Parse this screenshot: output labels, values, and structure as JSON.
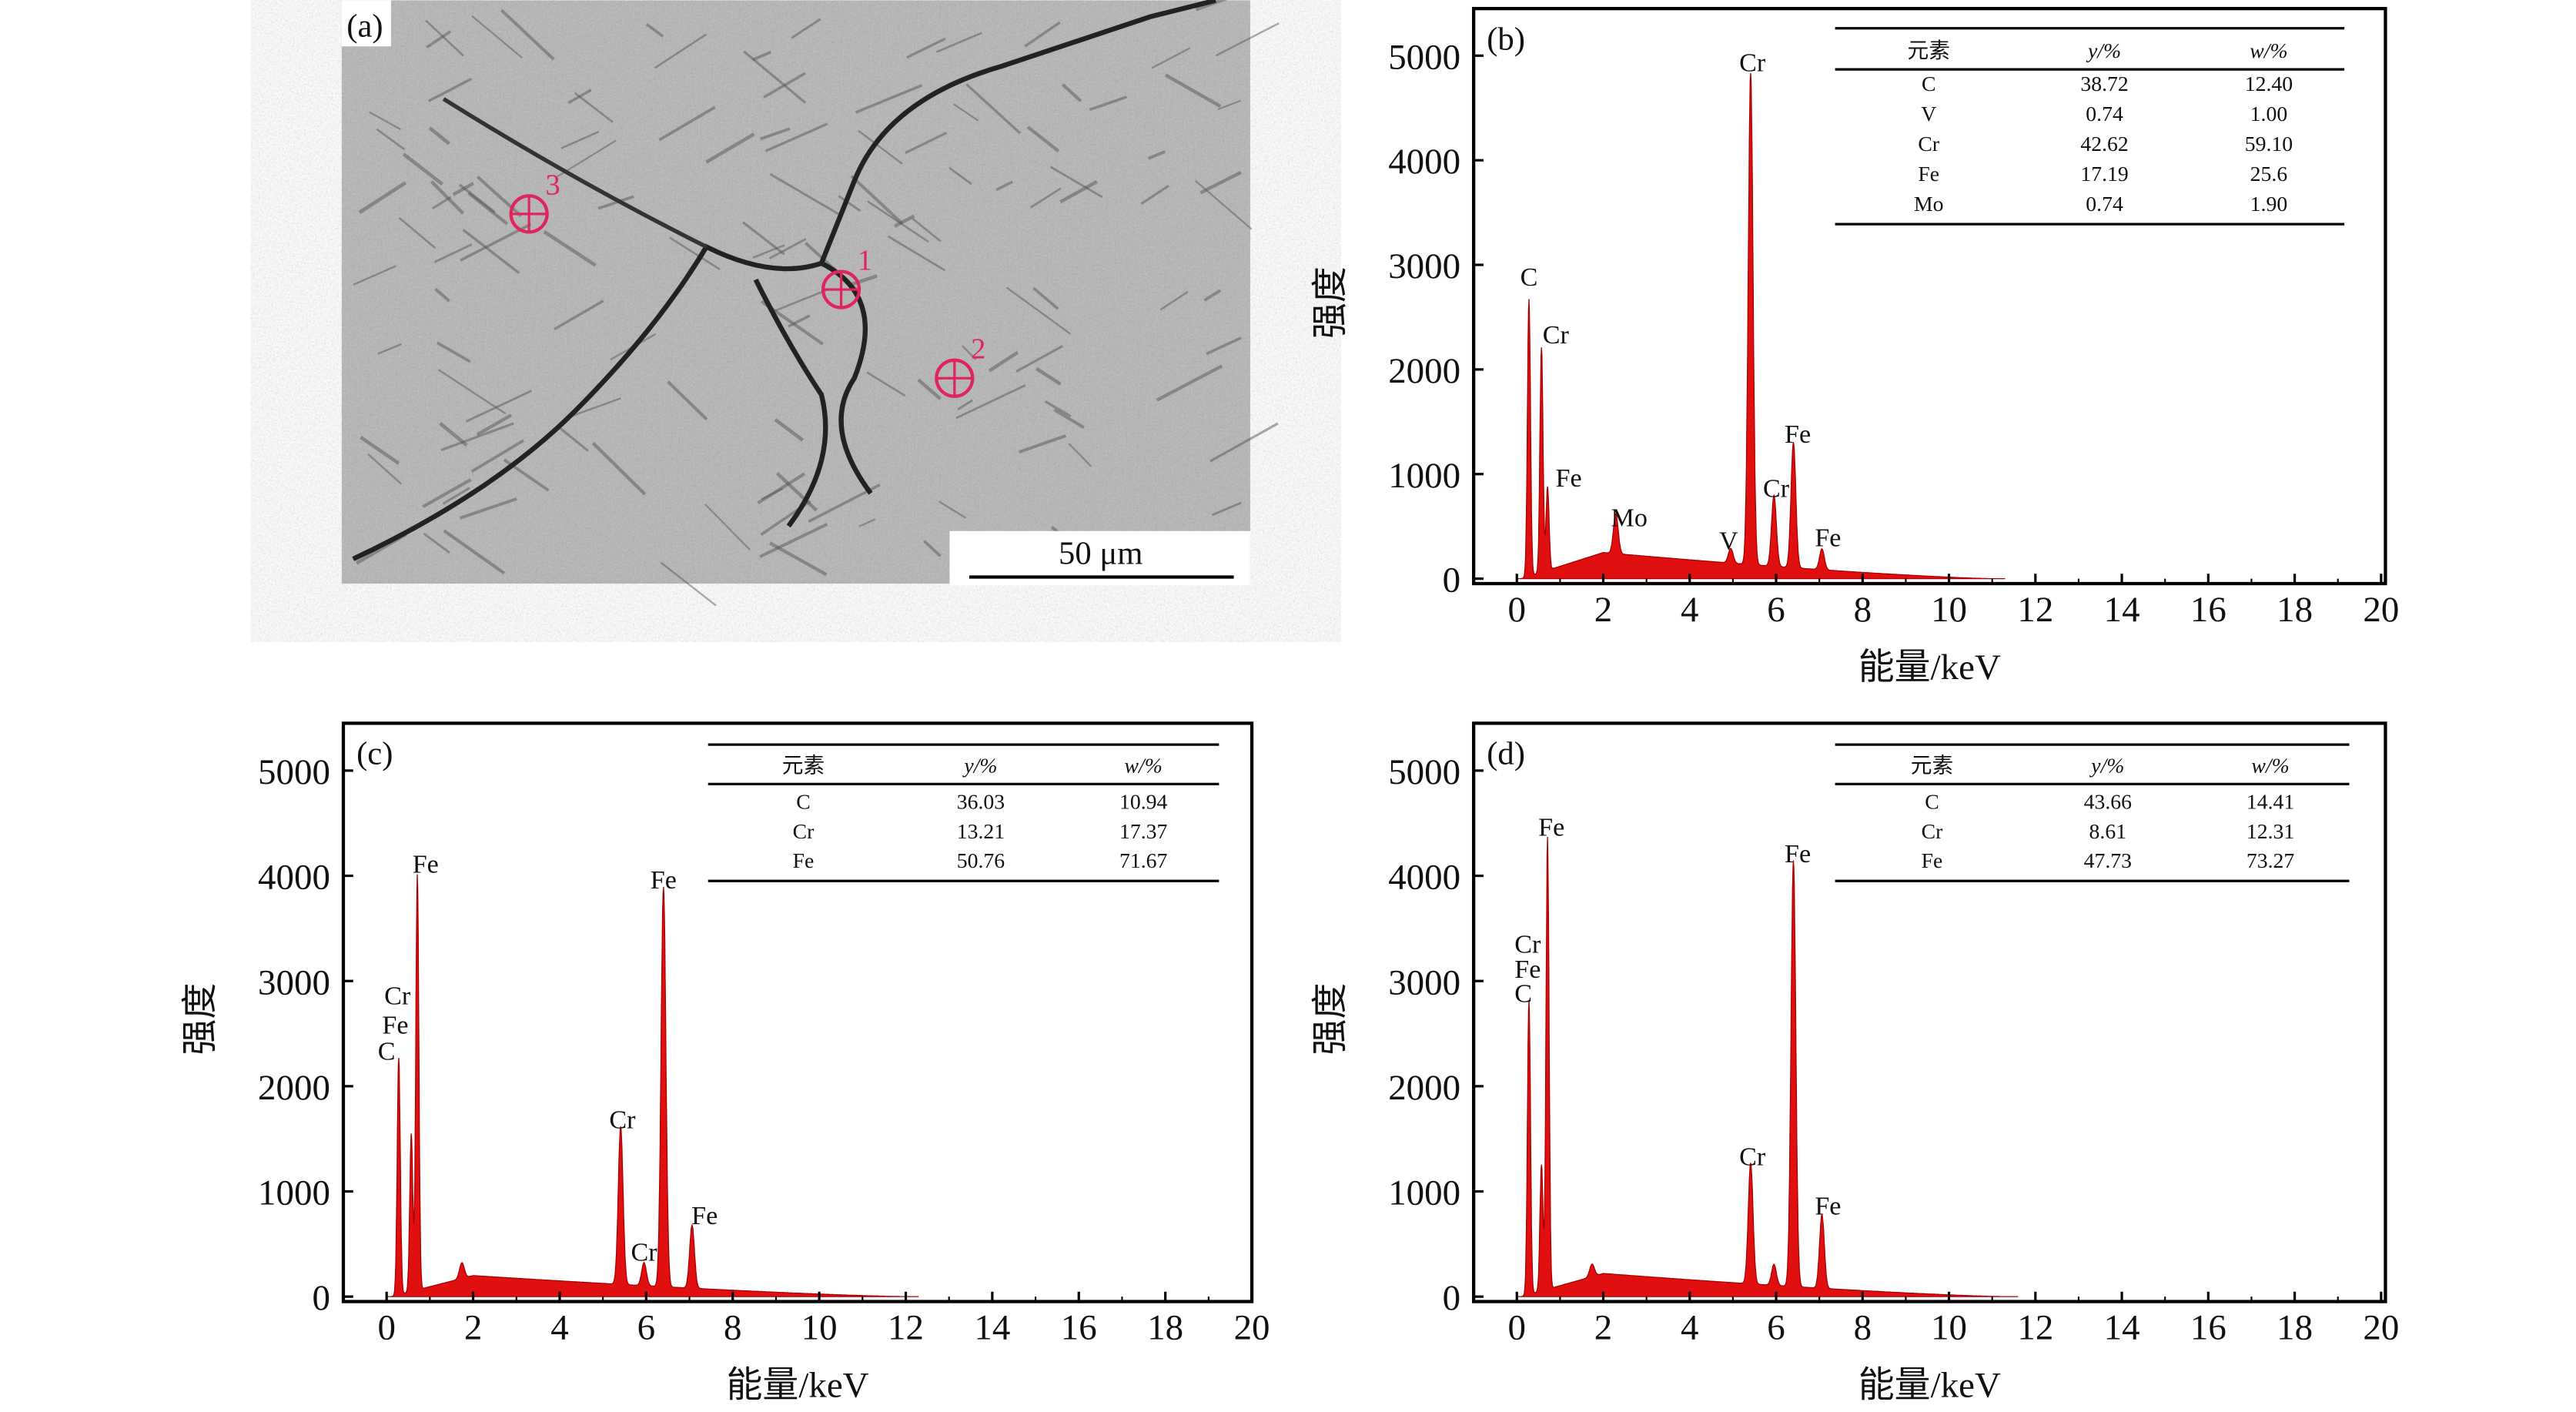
{
  "sem_image": {
    "panel_label": "(a)",
    "scale_bar": "50 μm",
    "markers": [
      {
        "label": "1"
      },
      {
        "label": "2"
      },
      {
        "label": "3"
      }
    ],
    "marker_color": "#e0245e"
  },
  "chart_data": [
    {
      "type": "area",
      "panel_label": "(b)",
      "xlabel": "能量/keV",
      "ylabel": "强度",
      "xlim": [
        -1,
        20.1
      ],
      "ylim": [
        0,
        5450
      ],
      "xticks": [
        0,
        2,
        4,
        6,
        8,
        10,
        12,
        14,
        16,
        18,
        20
      ],
      "yticks": [
        0,
        1000,
        2000,
        3000,
        4000,
        5000
      ],
      "color": "#e01010",
      "background": {
        "peak_keV": 2,
        "peak": 250,
        "end_keV": 11
      },
      "peaks": [
        {
          "keV": 0.28,
          "intensity": 2650
        },
        {
          "keV": 0.57,
          "intensity": 2150
        },
        {
          "keV": 0.71,
          "intensity": 800
        },
        {
          "keV": 2.29,
          "intensity": 380
        },
        {
          "keV": 4.95,
          "intensity": 140
        },
        {
          "keV": 5.41,
          "intensity": 4700
        },
        {
          "keV": 5.95,
          "intensity": 680
        },
        {
          "keV": 6.4,
          "intensity": 1200
        },
        {
          "keV": 7.06,
          "intensity": 200
        }
      ],
      "annotations": [
        {
          "text": "C",
          "keV": 0.28,
          "intensity": 2800
        },
        {
          "text": "Cr",
          "keV": 0.9,
          "intensity": 2250
        },
        {
          "text": "Fe",
          "keV": 1.2,
          "intensity": 880
        },
        {
          "text": "Mo",
          "keV": 2.6,
          "intensity": 500
        },
        {
          "text": "V",
          "keV": 4.9,
          "intensity": 280
        },
        {
          "text": "Cr",
          "keV": 5.45,
          "intensity": 4850
        },
        {
          "text": "Cr",
          "keV": 6.0,
          "intensity": 780
        },
        {
          "text": "Fe",
          "keV": 6.5,
          "intensity": 1300
        },
        {
          "text": "Fe",
          "keV": 7.2,
          "intensity": 310
        }
      ],
      "table": {
        "headers": [
          "元素",
          "y/%",
          "w/%"
        ],
        "rows": [
          [
            "C",
            "38.72",
            "12.40"
          ],
          [
            "V",
            "0.74",
            "1.00"
          ],
          [
            "Cr",
            "42.62",
            "59.10"
          ],
          [
            "Fe",
            "17.19",
            "25.6"
          ],
          [
            "Mo",
            "0.74",
            "1.90"
          ]
        ]
      }
    },
    {
      "type": "area",
      "panel_label": "(c)",
      "xlabel": "能量/keV",
      "ylabel": "强度",
      "xlim": [
        -1,
        20
      ],
      "ylim": [
        0,
        5450
      ],
      "xticks": [
        0,
        2,
        4,
        6,
        8,
        10,
        12,
        14,
        16,
        18,
        20
      ],
      "yticks": [
        0,
        1000,
        2000,
        3000,
        4000,
        5000
      ],
      "color": "#e01010",
      "background": {
        "peak_keV": 2,
        "peak": 200,
        "end_keV": 12
      },
      "peaks": [
        {
          "keV": 0.28,
          "intensity": 2250
        },
        {
          "keV": 0.57,
          "intensity": 1500
        },
        {
          "keV": 0.71,
          "intensity": 3950
        },
        {
          "keV": 1.74,
          "intensity": 150
        },
        {
          "keV": 5.41,
          "intensity": 1500
        },
        {
          "keV": 5.95,
          "intensity": 220
        },
        {
          "keV": 6.4,
          "intensity": 3800
        },
        {
          "keV": 7.06,
          "intensity": 600
        }
      ],
      "annotations": [
        {
          "text": "C",
          "keV": 0.0,
          "intensity": 2250
        },
        {
          "text": "Fe",
          "keV": 0.2,
          "intensity": 2500
        },
        {
          "text": "Cr",
          "keV": 0.25,
          "intensity": 2780
        },
        {
          "text": "Fe",
          "keV": 0.9,
          "intensity": 4030
        },
        {
          "text": "Cr",
          "keV": 5.45,
          "intensity": 1600
        },
        {
          "text": "Cr",
          "keV": 5.95,
          "intensity": 340
        },
        {
          "text": "Fe",
          "keV": 6.4,
          "intensity": 3880
        },
        {
          "text": "Fe",
          "keV": 7.35,
          "intensity": 690
        }
      ],
      "table": {
        "headers": [
          "元素",
          "y/%",
          "w/%"
        ],
        "rows": [
          [
            "C",
            "36.03",
            "10.94"
          ],
          [
            "Cr",
            "13.21",
            "17.37"
          ],
          [
            "Fe",
            "50.76",
            "71.67"
          ]
        ]
      }
    },
    {
      "type": "area",
      "panel_label": "(d)",
      "xlabel": "能量/keV",
      "ylabel": "强度",
      "xlim": [
        -1,
        20.1
      ],
      "ylim": [
        0,
        5450
      ],
      "xticks": [
        0,
        2,
        4,
        6,
        8,
        10,
        12,
        14,
        16,
        18,
        20
      ],
      "yticks": [
        0,
        1000,
        2000,
        3000,
        4000,
        5000
      ],
      "color": "#e01010",
      "background": {
        "peak_keV": 2,
        "peak": 220,
        "end_keV": 11.3
      },
      "peaks": [
        {
          "keV": 0.28,
          "intensity": 2800
        },
        {
          "keV": 0.57,
          "intensity": 1200
        },
        {
          "keV": 0.71,
          "intensity": 4300
        },
        {
          "keV": 1.74,
          "intensity": 120
        },
        {
          "keV": 5.41,
          "intensity": 1150
        },
        {
          "keV": 5.95,
          "intensity": 200
        },
        {
          "keV": 6.4,
          "intensity": 4050
        },
        {
          "keV": 7.06,
          "intensity": 700
        }
      ],
      "annotations": [
        {
          "text": "C",
          "keV": 0.15,
          "intensity": 2800
        },
        {
          "text": "Fe",
          "keV": 0.25,
          "intensity": 3030
        },
        {
          "text": "Cr",
          "keV": 0.25,
          "intensity": 3270
        },
        {
          "text": "Fe",
          "keV": 0.8,
          "intensity": 4380
        },
        {
          "text": "Cr",
          "keV": 5.45,
          "intensity": 1250
        },
        {
          "text": "Fe",
          "keV": 6.5,
          "intensity": 4130
        },
        {
          "text": "Fe",
          "keV": 7.2,
          "intensity": 780
        }
      ],
      "table": {
        "headers": [
          "元素",
          "y/%",
          "w/%"
        ],
        "rows": [
          [
            "C",
            "43.66",
            "14.41"
          ],
          [
            "Cr",
            "8.61",
            "12.31"
          ],
          [
            "Fe",
            "47.73",
            "73.27"
          ]
        ]
      }
    }
  ]
}
